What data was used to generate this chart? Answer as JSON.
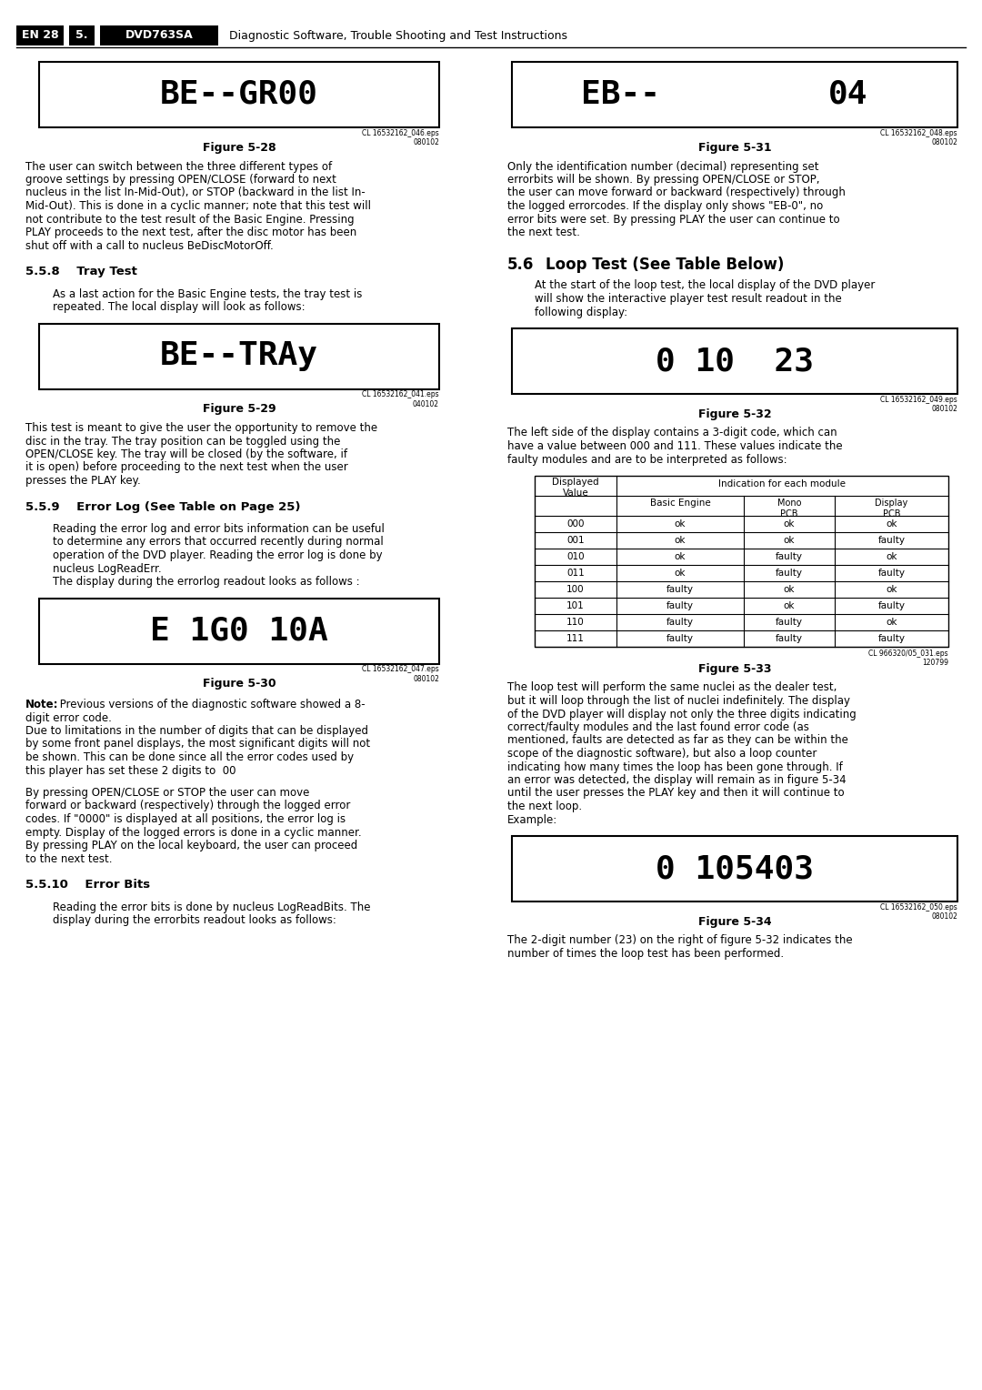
{
  "bg_color": "#ffffff",
  "header_en": "EN 28",
  "header_num": "5.",
  "header_model": "DVD763SA",
  "header_title": "Diagnostic Software, Trouble Shooting and Test Instructions",
  "fig28_display": "BE--GR00",
  "fig28_label": "CL 16532162_046.eps\n080102",
  "fig28_caption": "Figure 5-28",
  "fig28_lines": [
    "The user can switch between the three different types of",
    "groove settings by pressing OPEN/CLOSE (forward to next",
    "nucleus in the list In-Mid-Out), or STOP (backward in the list In-",
    "Mid-Out). This is done in a cyclic manner; note that this test will",
    "not contribute to the test result of the Basic Engine. Pressing",
    "PLAY proceeds to the next test, after the disc motor has been",
    "shut off with a call to nucleus BeDiscMotorOff."
  ],
  "sec558_title": "5.5.8    Tray Test",
  "sec558_lines": [
    "As a last action for the Basic Engine tests, the tray test is",
    "repeated. The local display will look as follows:"
  ],
  "fig29_display": "BE--TRAy",
  "fig29_label": "CL 16532162_041.eps\n040102",
  "fig29_caption": "Figure 5-29",
  "fig29_lines": [
    "This test is meant to give the user the opportunity to remove the",
    "disc in the tray. The tray position can be toggled using the",
    "OPEN/CLOSE key. The tray will be closed (by the software, if",
    "it is open) before proceeding to the next test when the user",
    "presses the PLAY key."
  ],
  "sec559_title": "5.5.9    Error Log (See Table on Page 25)",
  "sec559_lines": [
    "Reading the error log and error bits information can be useful",
    "to determine any errors that occurred recently during normal",
    "operation of the DVD player. Reading the error log is done by",
    "nucleus LogReadErr.",
    "The display during the errorlog readout looks as follows :"
  ],
  "fig30_display": "E 1G0 10A",
  "fig30_label": "CL 16532162_047.eps\n080102",
  "fig30_caption": "Figure 5-30",
  "fig30_note_bold": "Note:",
  "fig30_note_lines": [
    " Previous versions of the diagnostic software showed a 8-",
    "digit error code.",
    "Due to limitations in the number of digits that can be displayed",
    "by some front panel displays, the most significant digits will not",
    "be shown. This can be done since all the error codes used by",
    "this player has set these 2 digits to  00"
  ],
  "fig30_lines2": [
    "By pressing OPEN/CLOSE or STOP the user can move",
    "forward or backward (respectively) through the logged error",
    "codes. If \"0000\" is displayed at all positions, the error log is",
    "empty. Display of the logged errors is done in a cyclic manner.",
    "By pressing PLAY on the local keyboard, the user can proceed",
    "to the next test."
  ],
  "sec5510_title": "5.5.10    Error Bits",
  "sec5510_lines": [
    "Reading the error bits is done by nucleus LogReadBits. The",
    "display during the errorbits readout looks as follows:"
  ],
  "fig31_display_left": "EB--",
  "fig31_display_right": "04",
  "fig31_label": "CL 16532162_048.eps\n080102",
  "fig31_caption": "Figure 5-31",
  "fig31_lines": [
    "Only the identification number (decimal) representing set",
    "errorbits will be shown. By pressing OPEN/CLOSE or STOP,",
    "the user can move forward or backward (respectively) through",
    "the logged errorcodes. If the display only shows \"EB-0\", no",
    "error bits were set. By pressing PLAY the user can continue to",
    "the next test."
  ],
  "sec56_num": "5.6",
  "sec56_title": "Loop Test (See Table Below)",
  "sec56_lines": [
    "At the start of the loop test, the local display of the DVD player",
    "will show the interactive player test result readout in the",
    "following display:"
  ],
  "fig32_display": "0 10  23",
  "fig32_label": "CL 16532162_049.eps\n080102",
  "fig32_caption": "Figure 5-32",
  "fig32_lines": [
    "The left side of the display contains a 3-digit code, which can",
    "have a value between 000 and 111. These values indicate the",
    "faulty modules and are to be interpreted as follows:"
  ],
  "table_data": [
    [
      "000",
      "ok",
      "ok",
      "ok"
    ],
    [
      "001",
      "ok",
      "ok",
      "faulty"
    ],
    [
      "010",
      "ok",
      "faulty",
      "ok"
    ],
    [
      "011",
      "ok",
      "faulty",
      "faulty"
    ],
    [
      "100",
      "faulty",
      "ok",
      "ok"
    ],
    [
      "101",
      "faulty",
      "ok",
      "faulty"
    ],
    [
      "110",
      "faulty",
      "faulty",
      "ok"
    ],
    [
      "111",
      "faulty",
      "faulty",
      "faulty"
    ]
  ],
  "table_label": "CL 966320/05_031.eps\n120799",
  "fig33_caption": "Figure 5-33",
  "fig33_lines": [
    "The loop test will perform the same nuclei as the dealer test,",
    "but it will loop through the list of nuclei indefinitely. The display",
    "of the DVD player will display not only the three digits indicating",
    "correct/faulty modules and the last found error code (as",
    "mentioned, faults are detected as far as they can be within the",
    "scope of the diagnostic software), but also a loop counter",
    "indicating how many times the loop has been gone through. If",
    "an error was detected, the display will remain as in figure 5-34",
    "until the user presses the PLAY key and then it will continue to",
    "the next loop.",
    "Example:"
  ],
  "fig34_display": "0 105403",
  "fig34_label": "CL 16532162_050.eps\n080102",
  "fig34_caption": "Figure 5-34",
  "fig34_lines": [
    "The 2-digit number (23) on the right of figure 5-32 indicates the",
    "number of times the loop test has been performed."
  ]
}
